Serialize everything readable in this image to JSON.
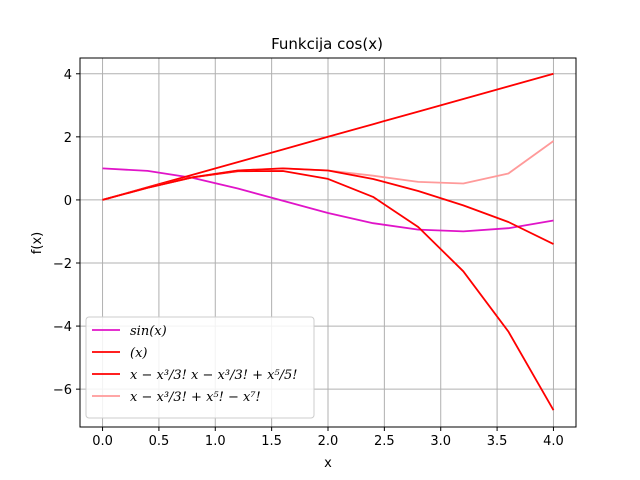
{
  "chart_data": {
    "type": "line",
    "title": "Funkcija cos(x)",
    "xlabel": "x",
    "ylabel": "f(x)",
    "xlim": [
      -0.2,
      4.2
    ],
    "ylim": [
      -7.2,
      4.5
    ],
    "xticks": [
      0.0,
      0.5,
      1.0,
      1.5,
      2.0,
      2.5,
      3.0,
      3.5,
      4.0
    ],
    "xtick_labels": [
      "0.0",
      "0.5",
      "1.0",
      "1.5",
      "2.0",
      "2.5",
      "3.0",
      "3.5",
      "4.0"
    ],
    "yticks": [
      4,
      2,
      0,
      -2,
      -4,
      -6
    ],
    "ytick_labels": [
      "4",
      "2",
      "0",
      "−2",
      "−4",
      "−6"
    ],
    "grid": true,
    "legend_position": "lower-left",
    "x": [
      0.0,
      0.4,
      0.8,
      1.2,
      1.6,
      2.0,
      2.4,
      2.8,
      3.2,
      3.6,
      4.0
    ],
    "series": [
      {
        "name": "sin(x)",
        "color": "#e014c8",
        "values": [
          1.0,
          0.921,
          0.697,
          0.362,
          -0.029,
          -0.416,
          -0.737,
          -0.942,
          -0.998,
          -0.897,
          -0.654
        ]
      },
      {
        "name": "(x)",
        "color": "#ff0000",
        "values": [
          0.0,
          0.4,
          0.8,
          1.2,
          1.6,
          2.0,
          2.4,
          2.8,
          3.2,
          3.6,
          4.0
        ]
      },
      {
        "name": "x − x³/3! x − x³/3! + x⁵/5!",
        "color": "#ff0000",
        "values": [
          0.0,
          0.389,
          0.715,
          0.912,
          0.917,
          0.667,
          0.096,
          -0.86,
          -2.262,
          -4.176,
          -6.667
        ]
      },
      {
        "name": "x − x³/3! + x⁵! − x⁷!",
        "color": "#ff9a9a",
        "values": [
          0.0,
          0.389,
          0.717,
          0.932,
          0.999,
          0.933,
          0.767,
          0.571,
          0.521,
          0.838,
          1.867
        ]
      },
      {
        "name": "",
        "color": "#ff0000",
        "values": [
          0.0,
          0.389,
          0.717,
          0.932,
          1.0,
          0.933,
          0.663,
          0.283,
          -0.175,
          -0.7,
          -1.4
        ]
      }
    ]
  },
  "legend": [
    {
      "label": "sin(x)",
      "color": "#e014c8"
    },
    {
      "label": "(x)",
      "color": "#ff0000"
    },
    {
      "label": "x − x³/3! x − x³/3! + x⁵/5!",
      "color": "#ff0000"
    },
    {
      "label": "x − x³/3! + x⁵! − x⁷!",
      "color": "#ff9a9a"
    }
  ]
}
